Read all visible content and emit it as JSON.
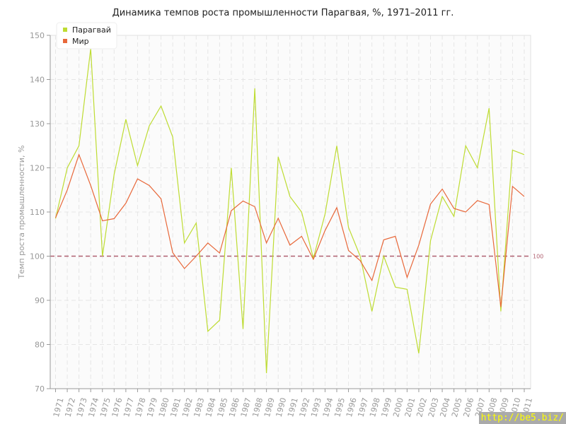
{
  "chart_data": {
    "type": "line",
    "title": "Динамика темпов роста промышленности Парагвая, %, 1971–2011 гг.",
    "xlabel": "",
    "ylabel": "Темп роста промышленности, %",
    "ylim": [
      70,
      150
    ],
    "yticks": [
      70,
      80,
      90,
      100,
      110,
      120,
      130,
      140,
      150
    ],
    "grid": true,
    "legend_position": "top-left",
    "reference_line": {
      "value": 100,
      "label": "100",
      "color": "#b06070"
    },
    "x": [
      1971,
      1972,
      1973,
      1974,
      1975,
      1976,
      1977,
      1978,
      1979,
      1980,
      1981,
      1982,
      1983,
      1984,
      1985,
      1986,
      1987,
      1988,
      1989,
      1990,
      1991,
      1992,
      1993,
      1994,
      1995,
      1996,
      1997,
      1998,
      1999,
      2000,
      2001,
      2002,
      2003,
      2004,
      2005,
      2006,
      2007,
      2008,
      2009,
      2010,
      2011
    ],
    "series": [
      {
        "name": "Парагвай",
        "color": "#bedc32",
        "values": [
          108.5,
          120,
          125,
          147,
          100,
          118.5,
          131,
          120.5,
          129.5,
          134,
          127,
          103,
          107.5,
          83,
          85.5,
          120,
          83.5,
          138,
          73.5,
          122.5,
          113.5,
          110,
          99.5,
          109.5,
          125,
          106.5,
          100,
          87.5,
          100,
          93,
          92.5,
          78,
          103.5,
          113.5,
          109,
          125,
          120,
          133.5,
          87.5,
          124,
          123
        ]
      },
      {
        "name": "Мир",
        "color": "#e8683a",
        "values": [
          108.7,
          115,
          123,
          116,
          108,
          108.5,
          112,
          117.5,
          116,
          113,
          100.8,
          97.2,
          100,
          103,
          100.7,
          110.3,
          112.5,
          111.2,
          103,
          108.6,
          102.5,
          104.5,
          99.3,
          105.8,
          111,
          101.3,
          99,
          94.5,
          103.7,
          104.5,
          95.2,
          102.5,
          111.8,
          115.2,
          110.8,
          110,
          112.6,
          111.7,
          88.5,
          115.8,
          113.5
        ]
      }
    ]
  },
  "watermark": "http://be5.biz/"
}
